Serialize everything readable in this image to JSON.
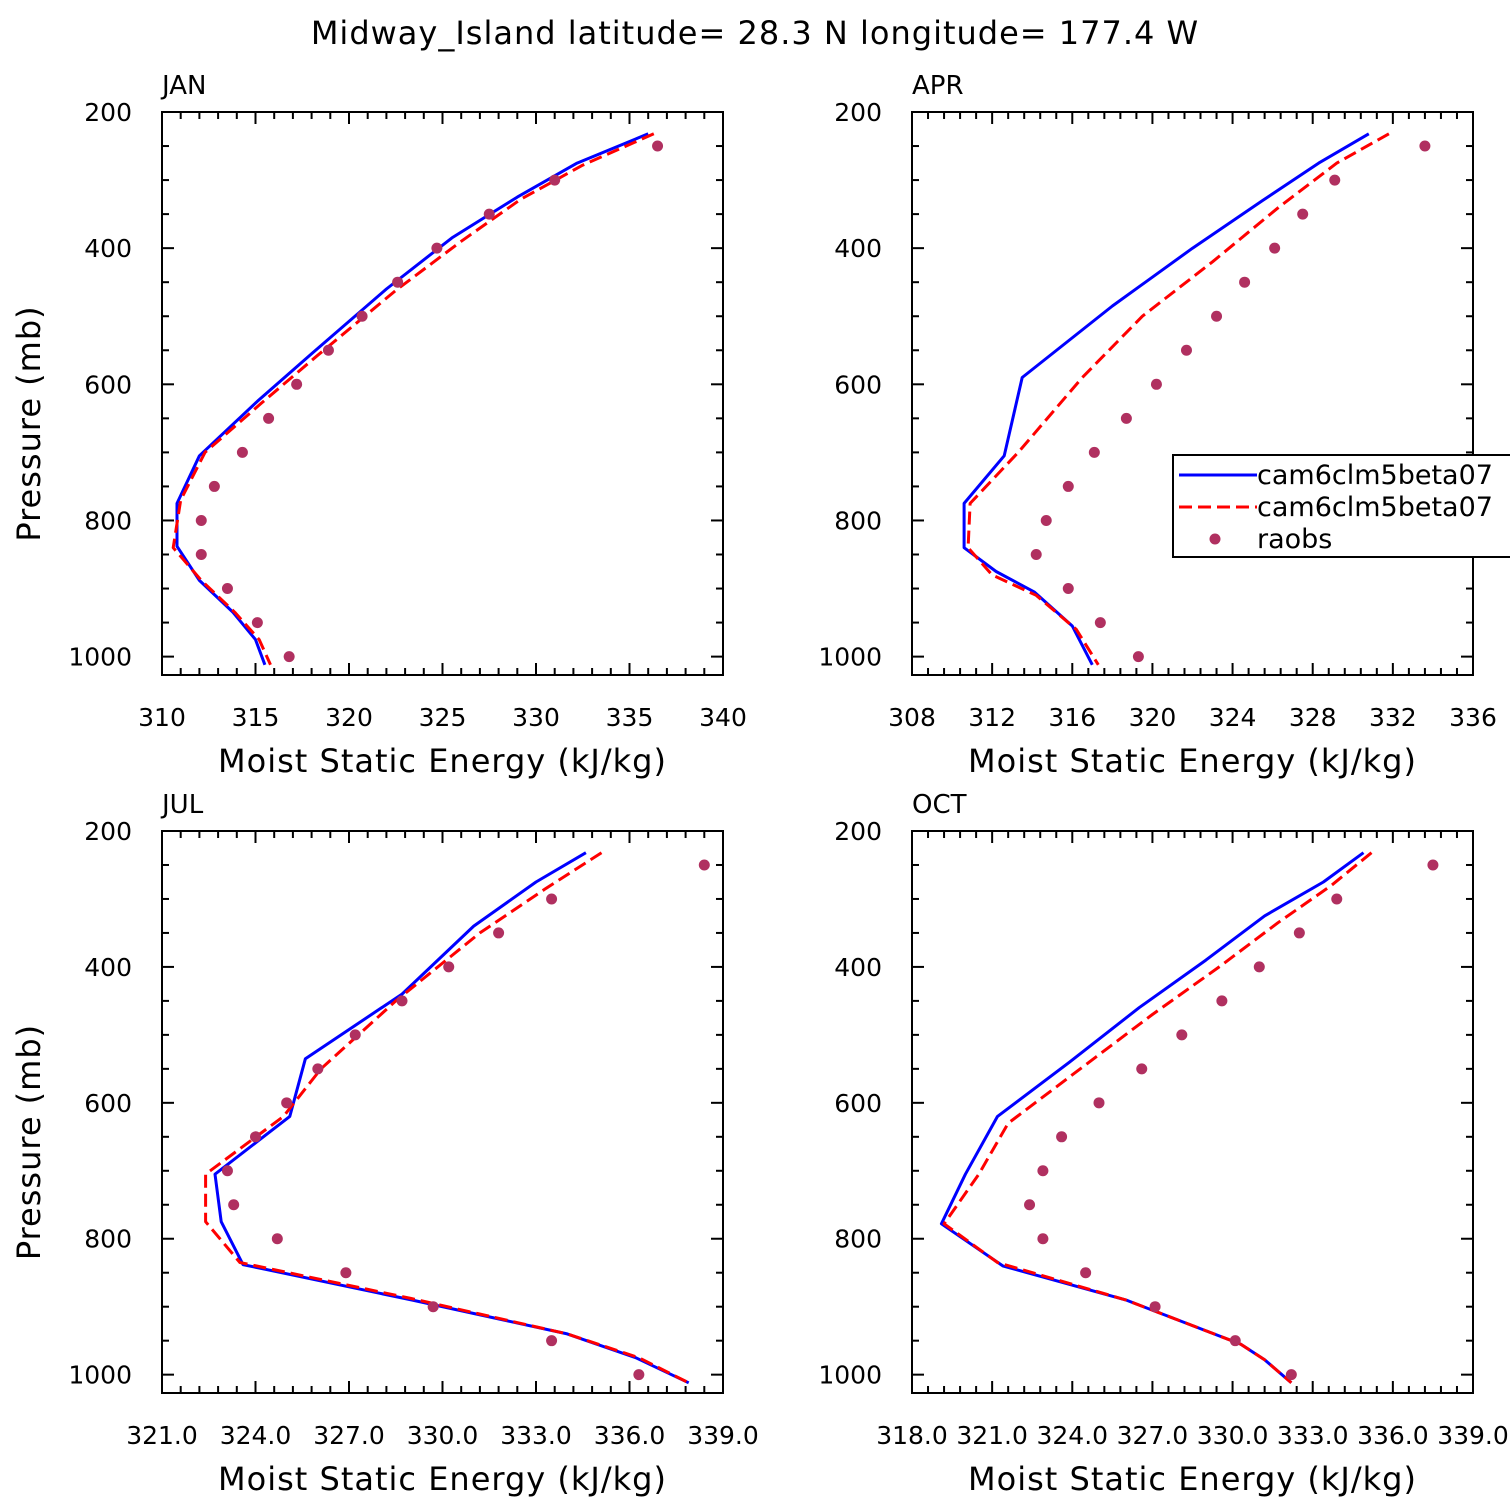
{
  "title": "Midway_Island  latitude= 28.3 N longitude= 177.4 W",
  "colors": {
    "model_a": "#0000ff",
    "model_b": "#ff0000",
    "raobs": "#b03060",
    "axes": "#000000"
  },
  "legend": {
    "panel": "APR",
    "entries": [
      {
        "label": "cam6clm5beta07",
        "style": "solid",
        "color": "#0000ff"
      },
      {
        "label": "cam6clm5beta07",
        "style": "dashed",
        "color": "#ff0000"
      },
      {
        "label": "raobs",
        "style": "marker",
        "color": "#b03060"
      }
    ]
  },
  "chart_data": [
    {
      "type": "line",
      "panel": "JAN",
      "xlabel": "Moist Static Energy (kJ/kg)",
      "ylabel": "Pressure (mb)",
      "xlim": [
        310,
        340
      ],
      "ylim": [
        1000,
        200
      ],
      "x_ticks": [
        310,
        315,
        320,
        325,
        330,
        335,
        340
      ],
      "x_tick_labels": [
        "310",
        "315",
        "320",
        "325",
        "330",
        "335",
        "340"
      ],
      "y_ticks": [
        200,
        400,
        600,
        800,
        1000
      ],
      "y_tick_labels": [
        "200",
        "400",
        "600",
        "800",
        "1000"
      ],
      "series": [
        {
          "name": "cam6clm5beta07",
          "style": "solid",
          "color": "#0000ff",
          "points": [
            [
              336,
              232
            ],
            [
              332.2,
              275
            ],
            [
              329,
              325
            ],
            [
              325.5,
              385
            ],
            [
              322,
              460
            ],
            [
              318,
              555
            ],
            [
              315.1,
              625
            ],
            [
              312,
              705
            ],
            [
              310.8,
              775
            ],
            [
              310.8,
              838
            ],
            [
              312,
              888
            ],
            [
              313.8,
              935
            ],
            [
              315,
              975
            ],
            [
              315.5,
              1012
            ]
          ]
        },
        {
          "name": "cam6clm5beta07",
          "style": "dashed",
          "color": "#ff0000",
          "points": [
            [
              336.3,
              232
            ],
            [
              332.5,
              278
            ],
            [
              329.2,
              328
            ],
            [
              326,
              390
            ],
            [
              322.5,
              462
            ],
            [
              318.3,
              558
            ],
            [
              315.3,
              628
            ],
            [
              312.3,
              700
            ],
            [
              311,
              770
            ],
            [
              310.6,
              840
            ],
            [
              312.1,
              888
            ],
            [
              313.9,
              935
            ],
            [
              315.2,
              975
            ],
            [
              315.8,
              1012
            ]
          ]
        },
        {
          "name": "raobs",
          "style": "marker",
          "color": "#b03060",
          "points": [
            [
              336.5,
              250
            ],
            [
              331,
              300
            ],
            [
              327.5,
              350
            ],
            [
              324.7,
              400
            ],
            [
              322.6,
              450
            ],
            [
              320.7,
              500
            ],
            [
              318.9,
              550
            ],
            [
              317.2,
              600
            ],
            [
              315.7,
              650
            ],
            [
              314.3,
              700
            ],
            [
              312.8,
              750
            ],
            [
              312.1,
              800
            ],
            [
              312.1,
              850
            ],
            [
              313.5,
              900
            ],
            [
              315.1,
              950
            ],
            [
              316.8,
              1000
            ]
          ]
        }
      ]
    },
    {
      "type": "line",
      "panel": "APR",
      "xlabel": "Moist Static Energy (kJ/kg)",
      "ylabel": "",
      "xlim": [
        308,
        336
      ],
      "ylim": [
        1000,
        200
      ],
      "x_ticks": [
        308,
        312,
        316,
        320,
        324,
        328,
        332,
        336
      ],
      "x_tick_labels": [
        "308",
        "312",
        "316",
        "320",
        "324",
        "328",
        "332",
        "336"
      ],
      "y_ticks": [
        200,
        400,
        600,
        800,
        1000
      ],
      "y_tick_labels": [
        "200",
        "400",
        "600",
        "800",
        "1000"
      ],
      "series": [
        {
          "name": "cam6clm5beta07",
          "style": "solid",
          "color": "#0000ff",
          "points": [
            [
              330.8,
              232
            ],
            [
              328.3,
              275
            ],
            [
              325.5,
              330
            ],
            [
              322,
              400
            ],
            [
              318,
              485
            ],
            [
              313.5,
              590
            ],
            [
              312.6,
              705
            ],
            [
              310.6,
              775
            ],
            [
              310.6,
              840
            ],
            [
              312.2,
              875
            ],
            [
              314.1,
              905
            ],
            [
              316,
              955
            ],
            [
              317,
              1012
            ]
          ]
        },
        {
          "name": "cam6clm5beta07",
          "style": "dashed",
          "color": "#ff0000",
          "points": [
            [
              331.8,
              232
            ],
            [
              329.2,
              275
            ],
            [
              326.3,
              340
            ],
            [
              323,
              420
            ],
            [
              319.5,
              500
            ],
            [
              316.5,
              590
            ],
            [
              313.3,
              700
            ],
            [
              310.9,
              775
            ],
            [
              310.8,
              840
            ],
            [
              312,
              880
            ],
            [
              314.2,
              910
            ],
            [
              316.2,
              960
            ],
            [
              317.3,
              1012
            ]
          ]
        },
        {
          "name": "raobs",
          "style": "marker",
          "color": "#b03060",
          "points": [
            [
              333.6,
              250
            ],
            [
              329.1,
              300
            ],
            [
              327.5,
              350
            ],
            [
              326.1,
              400
            ],
            [
              324.6,
              450
            ],
            [
              323.2,
              500
            ],
            [
              321.7,
              550
            ],
            [
              320.2,
              600
            ],
            [
              318.7,
              650
            ],
            [
              317.1,
              700
            ],
            [
              315.8,
              750
            ],
            [
              314.7,
              800
            ],
            [
              314.2,
              850
            ],
            [
              315.8,
              900
            ],
            [
              317.4,
              950
            ],
            [
              319.3,
              1000
            ]
          ]
        }
      ]
    },
    {
      "type": "line",
      "panel": "JUL",
      "xlabel": "Moist Static Energy (kJ/kg)",
      "ylabel": "Pressure (mb)",
      "xlim": [
        321.0,
        339.0
      ],
      "ylim": [
        1000,
        200
      ],
      "x_ticks": [
        321.0,
        324.0,
        327.0,
        330.0,
        333.0,
        336.0,
        339.0
      ],
      "x_tick_labels": [
        "321.0",
        "324.0",
        "327.0",
        "330.0",
        "333.0",
        "336.0",
        "339.0"
      ],
      "y_ticks": [
        200,
        400,
        600,
        800,
        1000
      ],
      "y_tick_labels": [
        "200",
        "400",
        "600",
        "800",
        "1000"
      ],
      "series": [
        {
          "name": "cam6clm5beta07",
          "style": "solid",
          "color": "#0000ff",
          "points": [
            [
              334.6,
              232
            ],
            [
              333,
              275
            ],
            [
              331,
              340
            ],
            [
              328.7,
              440
            ],
            [
              325.6,
              535
            ],
            [
              325.1,
              620
            ],
            [
              322.7,
              705
            ],
            [
              322.9,
              775
            ],
            [
              323.6,
              838
            ],
            [
              329,
              890
            ],
            [
              334,
              940
            ],
            [
              336.2,
              975
            ],
            [
              337.9,
              1012
            ]
          ]
        },
        {
          "name": "cam6clm5beta07",
          "style": "dashed",
          "color": "#ff0000",
          "points": [
            [
              335.1,
              232
            ],
            [
              333.3,
              285
            ],
            [
              331.2,
              350
            ],
            [
              328.5,
              450
            ],
            [
              326.1,
              550
            ],
            [
              324.9,
              620
            ],
            [
              322.4,
              705
            ],
            [
              322.4,
              775
            ],
            [
              323.5,
              835
            ],
            [
              329,
              888
            ],
            [
              334,
              940
            ],
            [
              336.3,
              975
            ],
            [
              337.9,
              1012
            ]
          ]
        },
        {
          "name": "raobs",
          "style": "marker",
          "color": "#b03060",
          "points": [
            [
              338.4,
              250
            ],
            [
              333.5,
              300
            ],
            [
              331.8,
              350
            ],
            [
              330.2,
              400
            ],
            [
              328.7,
              450
            ],
            [
              327.2,
              500
            ],
            [
              326,
              550
            ],
            [
              325,
              600
            ],
            [
              324,
              650
            ],
            [
              323.1,
              700
            ],
            [
              323.3,
              750
            ],
            [
              324.7,
              800
            ],
            [
              326.9,
              850
            ],
            [
              329.7,
              900
            ],
            [
              333.5,
              950
            ],
            [
              336.3,
              1000
            ]
          ]
        }
      ]
    },
    {
      "type": "line",
      "panel": "OCT",
      "xlabel": "Moist Static Energy (kJ/kg)",
      "ylabel": "",
      "xlim": [
        318.0,
        339.0
      ],
      "ylim": [
        1000,
        200
      ],
      "x_ticks": [
        318.0,
        321.0,
        324.0,
        327.0,
        330.0,
        333.0,
        336.0,
        339.0
      ],
      "x_tick_labels": [
        "318.0",
        "321.0",
        "324.0",
        "327.0",
        "330.0",
        "333.0",
        "336.0",
        "339.0"
      ],
      "y_ticks": [
        200,
        400,
        600,
        800,
        1000
      ],
      "y_tick_labels": [
        "200",
        "400",
        "600",
        "800",
        "1000"
      ],
      "series": [
        {
          "name": "cam6clm5beta07",
          "style": "solid",
          "color": "#0000ff",
          "points": [
            [
              334.9,
              232
            ],
            [
              333.4,
              275
            ],
            [
              331.2,
              325
            ],
            [
              329,
              390
            ],
            [
              326.5,
              460
            ],
            [
              323.9,
              540
            ],
            [
              321.2,
              620
            ],
            [
              320,
              705
            ],
            [
              319.1,
              778
            ],
            [
              321.4,
              840
            ],
            [
              326,
              890
            ],
            [
              330.3,
              955
            ],
            [
              331.2,
              978
            ],
            [
              332.2,
              1012
            ]
          ]
        },
        {
          "name": "cam6clm5beta07",
          "style": "dashed",
          "color": "#ff0000",
          "points": [
            [
              335.2,
              232
            ],
            [
              333.7,
              280
            ],
            [
              331.7,
              335
            ],
            [
              329.5,
              400
            ],
            [
              327,
              470
            ],
            [
              324.3,
              550
            ],
            [
              321.6,
              630
            ],
            [
              320.5,
              705
            ],
            [
              319.2,
              778
            ],
            [
              321.2,
              835
            ],
            [
              326,
              890
            ],
            [
              330.3,
              955
            ],
            [
              331.2,
              978
            ],
            [
              332.2,
              1012
            ]
          ]
        },
        {
          "name": "raobs",
          "style": "marker",
          "color": "#b03060",
          "points": [
            [
              337.5,
              250
            ],
            [
              333.9,
              300
            ],
            [
              332.5,
              350
            ],
            [
              331,
              400
            ],
            [
              329.6,
              450
            ],
            [
              328.1,
              500
            ],
            [
              326.6,
              550
            ],
            [
              325,
              600
            ],
            [
              323.6,
              650
            ],
            [
              322.9,
              700
            ],
            [
              322.4,
              750
            ],
            [
              322.9,
              800
            ],
            [
              324.5,
              850
            ],
            [
              327.1,
              900
            ],
            [
              330.1,
              950
            ],
            [
              332.2,
              1000
            ]
          ]
        }
      ]
    }
  ]
}
